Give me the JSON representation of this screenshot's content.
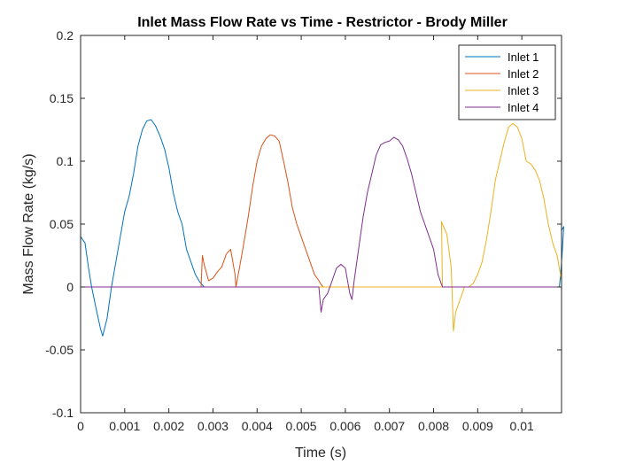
{
  "chart_data": {
    "type": "line",
    "title": "Inlet Mass Flow Rate vs Time - Restrictor - Brody Miller",
    "xlabel": "Time (s)",
    "ylabel": "Mass Flow Rate (kg/s)",
    "xlim": [
      0,
      0.0109
    ],
    "ylim": [
      -0.1,
      0.2
    ],
    "xticks": [
      0,
      0.001,
      0.002,
      0.003,
      0.004,
      0.005,
      0.006,
      0.007,
      0.008,
      0.009,
      0.01
    ],
    "xtick_labels": [
      "0",
      "0.001",
      "0.002",
      "0.003",
      "0.004",
      "0.005",
      "0.006",
      "0.007",
      "0.008",
      "0.009",
      "0.01"
    ],
    "yticks": [
      -0.1,
      -0.05,
      0,
      0.05,
      0.1,
      0.15,
      0.2
    ],
    "ytick_labels": [
      "-0.1",
      "-0.05",
      "0",
      "0.05",
      "0.1",
      "0.15",
      "0.2"
    ],
    "grid": false,
    "legend_position": "top-right",
    "series": [
      {
        "name": "Inlet 1",
        "color": "#0072BD",
        "x": [
          0,
          0.0001,
          0.00018,
          0.00025,
          0.00035,
          0.00045,
          0.0005,
          0.0006,
          0.0007,
          0.0008,
          0.0009,
          0.001,
          0.0011,
          0.0012,
          0.0013,
          0.0014,
          0.0015,
          0.0016,
          0.0017,
          0.0018,
          0.0019,
          0.002,
          0.0021,
          0.0022,
          0.0023,
          0.0024,
          0.0025,
          0.0026,
          0.0027,
          0.00275,
          0.0028,
          0.0035,
          0.0045,
          0.0055,
          0.0065,
          0.0075,
          0.0085,
          0.0095,
          0.0105,
          0.01085,
          0.01088,
          0.01092,
          0.01095,
          0.0109
        ],
        "y": [
          0.04,
          0.035,
          0.015,
          0,
          -0.017,
          -0.033,
          -0.039,
          -0.025,
          0,
          0.02,
          0.04,
          0.06,
          0.072,
          0.09,
          0.112,
          0.125,
          0.132,
          0.133,
          0.128,
          0.12,
          0.11,
          0.095,
          0.075,
          0.06,
          0.05,
          0.03,
          0.02,
          0.01,
          0.004,
          0.002,
          0,
          0,
          0,
          0,
          0,
          0,
          0,
          0,
          0,
          0,
          0.01,
          0.03,
          0.048,
          0.045
        ]
      },
      {
        "name": "Inlet 2",
        "color": "#D95319",
        "x": [
          0,
          0.00273,
          0.00276,
          0.0028,
          0.0029,
          0.003,
          0.0031,
          0.0032,
          0.0033,
          0.0034,
          0.0035,
          0.00352,
          0.0036,
          0.0037,
          0.0038,
          0.0039,
          0.004,
          0.0041,
          0.0042,
          0.0043,
          0.0044,
          0.0045,
          0.0046,
          0.0047,
          0.0048,
          0.0049,
          0.005,
          0.0051,
          0.0052,
          0.0053,
          0.0054,
          0.00545,
          0.0055,
          0.0109
        ],
        "y": [
          0,
          0,
          0.025,
          0.018,
          0.005,
          0.007,
          0.012,
          0.016,
          0.026,
          0.03,
          0.01,
          0,
          0.015,
          0.035,
          0.056,
          0.08,
          0.1,
          0.112,
          0.118,
          0.121,
          0.12,
          0.116,
          0.1,
          0.083,
          0.063,
          0.05,
          0.04,
          0.03,
          0.02,
          0.01,
          0.005,
          0.002,
          0,
          0
        ]
      },
      {
        "name": "Inlet 3",
        "color": "#EDB120",
        "x": [
          0,
          0.0082,
          0.00818,
          0.0082,
          0.0083,
          0.0084,
          0.00845,
          0.0085,
          0.0086,
          0.0087,
          0.0088,
          0.0089,
          0.009,
          0.0091,
          0.0092,
          0.0093,
          0.0094,
          0.0095,
          0.0096,
          0.0097,
          0.0098,
          0.0099,
          0.01,
          0.0101,
          0.0102,
          0.0103,
          0.0104,
          0.0105,
          0.0106,
          0.0107,
          0.0108,
          0.0109
        ],
        "y": [
          0,
          0,
          0.052,
          0.05,
          0.042,
          0.015,
          -0.035,
          -0.02,
          -0.01,
          0,
          0,
          0.003,
          0.01,
          0.02,
          0.038,
          0.06,
          0.085,
          0.1,
          0.115,
          0.127,
          0.13,
          0.127,
          0.118,
          0.1,
          0.098,
          0.093,
          0.085,
          0.07,
          0.05,
          0.035,
          0.025,
          0.005
        ]
      },
      {
        "name": "Inlet 4",
        "color": "#7E2F8E",
        "x": [
          0,
          0.0054,
          0.00545,
          0.0055,
          0.0056,
          0.0057,
          0.0058,
          0.0059,
          0.006,
          0.0061,
          0.00615,
          0.0062,
          0.0063,
          0.0064,
          0.0065,
          0.0066,
          0.0067,
          0.0068,
          0.0069,
          0.007,
          0.0071,
          0.0072,
          0.0073,
          0.0074,
          0.0075,
          0.0076,
          0.0077,
          0.0078,
          0.0079,
          0.008,
          0.0081,
          0.0082,
          0.0109
        ],
        "y": [
          0,
          0,
          -0.02,
          -0.01,
          -0.005,
          0.005,
          0.015,
          0.018,
          0.015,
          -0.005,
          -0.01,
          0.005,
          0.03,
          0.055,
          0.075,
          0.09,
          0.105,
          0.113,
          0.115,
          0.116,
          0.119,
          0.117,
          0.112,
          0.102,
          0.09,
          0.075,
          0.06,
          0.05,
          0.04,
          0.03,
          0.01,
          0,
          0
        ]
      }
    ]
  }
}
